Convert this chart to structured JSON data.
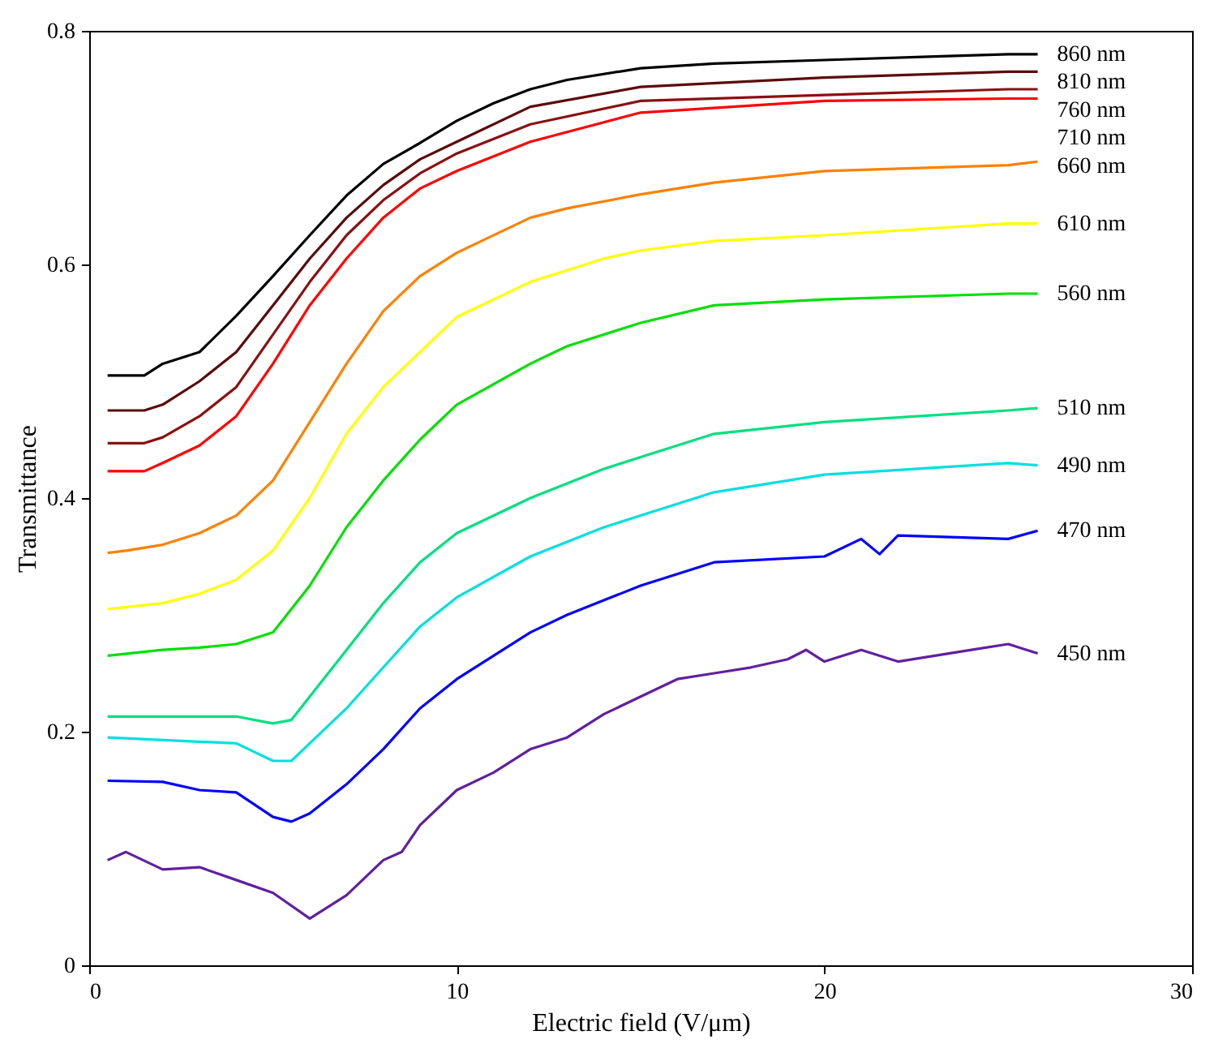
{
  "chart_data": {
    "type": "line",
    "xlabel": "Electric field (V/μm)",
    "ylabel": "Transmittance",
    "xlim": [
      0,
      30
    ],
    "xticks": [
      0,
      10,
      20,
      30
    ],
    "ylim": [
      0,
      0.8
    ],
    "yticks": [
      0,
      0.2,
      0.4,
      0.6,
      0.8
    ],
    "grid": false,
    "legend": false,
    "marker": "none",
    "line_style": "solid",
    "series": [
      {
        "name": "860 nm",
        "color": "#000000",
        "x": [
          0.5,
          1.5,
          2,
          3,
          4,
          5,
          6,
          7,
          8,
          9,
          10,
          11,
          12,
          13,
          15,
          17,
          20,
          23,
          25,
          25.8
        ],
        "values": [
          0.505,
          0.505,
          0.515,
          0.525,
          0.556,
          0.59,
          0.625,
          0.659,
          0.686,
          0.704,
          0.723,
          0.738,
          0.75,
          0.758,
          0.768,
          0.772,
          0.775,
          0.778,
          0.78,
          0.78
        ]
      },
      {
        "name": "810 nm",
        "color": "#5c0a0a",
        "x": [
          0.5,
          1.5,
          2,
          3,
          4,
          5,
          6,
          7,
          8,
          9,
          10,
          12,
          15,
          20,
          25,
          25.8
        ],
        "values": [
          0.475,
          0.475,
          0.48,
          0.5,
          0.525,
          0.565,
          0.605,
          0.64,
          0.668,
          0.69,
          0.705,
          0.735,
          0.752,
          0.76,
          0.765,
          0.765
        ]
      },
      {
        "name": "760 nm",
        "color": "#8b1010",
        "x": [
          0.5,
          1.5,
          2,
          3,
          4,
          5,
          6,
          7,
          8,
          9,
          10,
          12,
          15,
          20,
          25,
          25.8
        ],
        "values": [
          0.447,
          0.447,
          0.452,
          0.47,
          0.495,
          0.54,
          0.585,
          0.625,
          0.655,
          0.678,
          0.695,
          0.72,
          0.74,
          0.745,
          0.75,
          0.75
        ]
      },
      {
        "name": "710 nm",
        "color": "#ff0000",
        "x": [
          0.5,
          1.5,
          2,
          3,
          4,
          5,
          6,
          7,
          8,
          9,
          10,
          12,
          15,
          20,
          25,
          25.8
        ],
        "values": [
          0.423,
          0.423,
          0.43,
          0.445,
          0.47,
          0.515,
          0.565,
          0.605,
          0.64,
          0.665,
          0.68,
          0.705,
          0.73,
          0.74,
          0.742,
          0.742
        ]
      },
      {
        "name": "660 nm",
        "color": "#ff8000",
        "x": [
          0.5,
          1,
          2,
          3,
          4,
          5,
          6,
          7,
          8,
          9,
          10,
          12,
          13,
          15,
          17,
          20,
          25,
          25.8
        ],
        "values": [
          0.353,
          0.355,
          0.36,
          0.37,
          0.385,
          0.415,
          0.465,
          0.515,
          0.56,
          0.59,
          0.61,
          0.64,
          0.648,
          0.66,
          0.67,
          0.68,
          0.685,
          0.688
        ]
      },
      {
        "name": "610 nm",
        "color": "#ffff00",
        "x": [
          0.5,
          2,
          3,
          4,
          5,
          6,
          7,
          8,
          9,
          10,
          12,
          14,
          15,
          17,
          20,
          25,
          25.8
        ],
        "values": [
          0.305,
          0.31,
          0.318,
          0.33,
          0.355,
          0.4,
          0.455,
          0.495,
          0.525,
          0.555,
          0.585,
          0.605,
          0.612,
          0.62,
          0.625,
          0.635,
          0.635
        ]
      },
      {
        "name": "560 nm",
        "color": "#00e000",
        "x": [
          0.5,
          2,
          3,
          4,
          5,
          6,
          7,
          8,
          9,
          10,
          12,
          13,
          15,
          17,
          20,
          25,
          25.8
        ],
        "values": [
          0.265,
          0.27,
          0.272,
          0.275,
          0.285,
          0.325,
          0.375,
          0.415,
          0.45,
          0.48,
          0.515,
          0.53,
          0.55,
          0.565,
          0.57,
          0.575,
          0.575
        ]
      },
      {
        "name": "510 nm",
        "color": "#00e080",
        "x": [
          0.5,
          4,
          5,
          5.5,
          6,
          7,
          8,
          9,
          10,
          12,
          14,
          15,
          17,
          20,
          25,
          25.8
        ],
        "values": [
          0.213,
          0.213,
          0.207,
          0.21,
          0.23,
          0.27,
          0.31,
          0.345,
          0.37,
          0.4,
          0.425,
          0.435,
          0.455,
          0.465,
          0.475,
          0.477
        ]
      },
      {
        "name": "490 nm",
        "color": "#00e0e0",
        "x": [
          0.5,
          4,
          5,
          5.5,
          6,
          7,
          8,
          9,
          10,
          12,
          14,
          15,
          17,
          20,
          25,
          25.8
        ],
        "values": [
          0.195,
          0.19,
          0.175,
          0.175,
          0.19,
          0.22,
          0.255,
          0.29,
          0.315,
          0.35,
          0.375,
          0.385,
          0.405,
          0.42,
          0.43,
          0.428
        ]
      },
      {
        "name": "470 nm",
        "color": "#0000ff",
        "x": [
          0.5,
          2,
          3,
          4,
          5,
          5.5,
          6,
          7,
          8,
          9,
          10,
          12,
          13,
          15,
          17,
          20,
          21,
          21.5,
          22,
          25,
          25.8
        ],
        "values": [
          0.158,
          0.157,
          0.15,
          0.148,
          0.127,
          0.123,
          0.13,
          0.155,
          0.185,
          0.22,
          0.245,
          0.285,
          0.3,
          0.325,
          0.345,
          0.35,
          0.365,
          0.352,
          0.368,
          0.365,
          0.372
        ]
      },
      {
        "name": "450 nm",
        "color": "#6020a0",
        "x": [
          0.5,
          1,
          2,
          3,
          4,
          5,
          6,
          7,
          8,
          8.5,
          9,
          10,
          11,
          12,
          13,
          14,
          15,
          16,
          17,
          18,
          19,
          19.5,
          20,
          21,
          22,
          23,
          24,
          25,
          25.8
        ],
        "values": [
          0.09,
          0.097,
          0.082,
          0.084,
          0.073,
          0.062,
          0.04,
          0.06,
          0.09,
          0.097,
          0.12,
          0.15,
          0.165,
          0.185,
          0.195,
          0.215,
          0.23,
          0.245,
          0.25,
          0.255,
          0.262,
          0.27,
          0.26,
          0.27,
          0.26,
          0.265,
          0.27,
          0.275,
          0.267
        ]
      }
    ]
  }
}
